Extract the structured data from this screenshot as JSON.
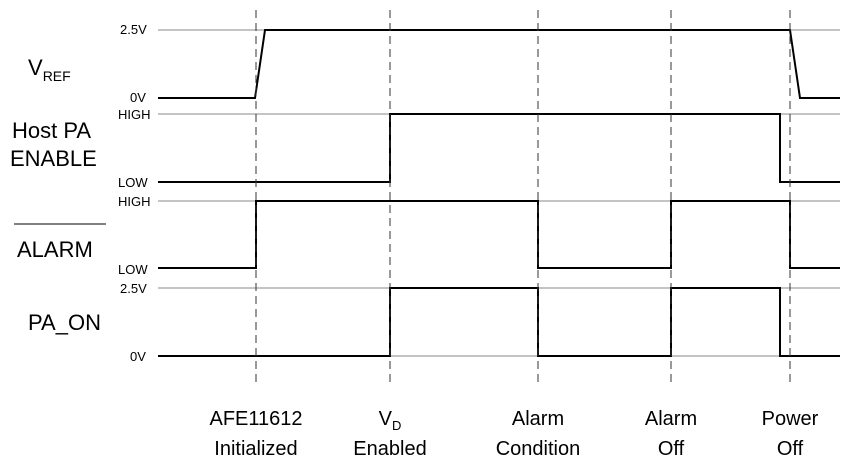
{
  "signals": [
    {
      "id": "vref",
      "name_main": "V",
      "name_sub": "REF",
      "high_label": "2.5V",
      "low_label": "0V"
    },
    {
      "id": "host_pa_enable",
      "name_line1": "Host PA",
      "name_line2": "ENABLE",
      "high_label": "HIGH",
      "low_label": "LOW"
    },
    {
      "id": "alarm",
      "name": "ALARM",
      "overbar": true,
      "high_label": "HIGH",
      "low_label": "LOW"
    },
    {
      "id": "pa_on",
      "name": "PA_ON",
      "high_label": "2.5V",
      "low_label": "0V"
    }
  ],
  "events": [
    {
      "line1": "AFE11612",
      "line2": "Initialized"
    },
    {
      "line1_main": "V",
      "line1_sub": "D",
      "line2": "Enabled"
    },
    {
      "line1": "Alarm",
      "line2": "Condition"
    },
    {
      "line1": "Alarm",
      "line2": "Off"
    },
    {
      "line1": "Power",
      "line2": "Off"
    }
  ],
  "waveform_levels": {
    "vref": [
      "low",
      "ramp-high",
      "high",
      "high",
      "high",
      "ramp-low"
    ],
    "host_pa_enable": [
      "low",
      "low",
      "high",
      "high",
      "high",
      "low"
    ],
    "alarm": [
      "low",
      "high",
      "high",
      "low",
      "high",
      "low"
    ],
    "pa_on": [
      "low",
      "low",
      "high",
      "low",
      "high",
      "low"
    ]
  }
}
